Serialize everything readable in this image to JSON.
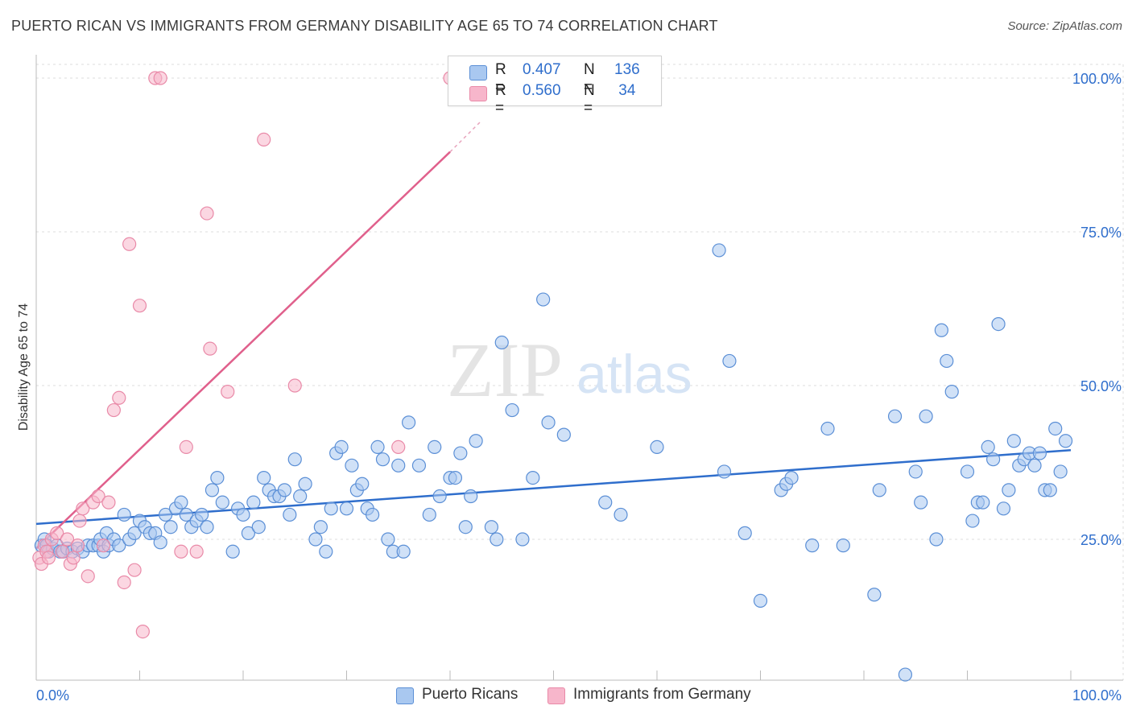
{
  "title": "PUERTO RICAN VS IMMIGRANTS FROM GERMANY DISABILITY AGE 65 TO 74 CORRELATION CHART",
  "source": "Source: ZipAtlas.com",
  "watermark": {
    "zip": "ZIP",
    "atlas": "atlas"
  },
  "legend": {
    "rows": [
      {
        "r_label": "R = ",
        "r_value": "0.407",
        "n_label": "N = ",
        "n_value": "136",
        "color": "#a9c8f0"
      },
      {
        "r_label": "R = ",
        "r_value": "0.560",
        "n_label": "N = ",
        "n_value": " 34",
        "color": "#f7b6cb"
      }
    ]
  },
  "bottom_legend": [
    {
      "label": "Puerto Ricans",
      "color": "#a9c8f0"
    },
    {
      "label": "Immigrants from Germany",
      "color": "#f7b6cb"
    }
  ],
  "colors": {
    "blue_fill": "#a9c8f0",
    "blue_stroke": "#5b8fd6",
    "blue_line": "#2f6ecc",
    "pink_fill": "#f7b6cb",
    "pink_stroke": "#e98aa8",
    "pink_line": "#e0608c",
    "axis_text": "#2f6ecc",
    "grid": "#dddddd"
  },
  "chart_data": {
    "type": "scatter",
    "ylabel": "Disability Age 65 to 74",
    "xlabel": "",
    "xlim": [
      0,
      100
    ],
    "ylim": [
      0,
      100
    ],
    "x_tick_labels": [
      "0.0%",
      "100.0%"
    ],
    "y_ticks": [
      25,
      50,
      75,
      100
    ],
    "y_tick_labels": [
      "25.0%",
      "50.0%",
      "75.0%",
      "100.0%"
    ],
    "grid": true,
    "legend_position": "top-center",
    "series": [
      {
        "name": "Puerto Ricans",
        "regression": {
          "x0": 0,
          "y0": 27.5,
          "x1": 100,
          "y1": 39.5
        },
        "points": [
          [
            0.5,
            24
          ],
          [
            0.8,
            25
          ],
          [
            1,
            24
          ],
          [
            1.2,
            23
          ],
          [
            1.6,
            23.5
          ],
          [
            2,
            24
          ],
          [
            2.3,
            23
          ],
          [
            2.6,
            23
          ],
          [
            3,
            23.5
          ],
          [
            3.5,
            23
          ],
          [
            4,
            23.5
          ],
          [
            4.5,
            23
          ],
          [
            5,
            24
          ],
          [
            5.5,
            24
          ],
          [
            6,
            24
          ],
          [
            6.2,
            25
          ],
          [
            6.5,
            23
          ],
          [
            6.8,
            26
          ],
          [
            7,
            24
          ],
          [
            7.5,
            25
          ],
          [
            8,
            24
          ],
          [
            8.5,
            29
          ],
          [
            9,
            25
          ],
          [
            9.5,
            26
          ],
          [
            10,
            28
          ],
          [
            10.5,
            27
          ],
          [
            11,
            26
          ],
          [
            11.5,
            26
          ],
          [
            12,
            24.5
          ],
          [
            12.5,
            29
          ],
          [
            13,
            27
          ],
          [
            13.5,
            30
          ],
          [
            14,
            31
          ],
          [
            14.5,
            29
          ],
          [
            15,
            27
          ],
          [
            15.5,
            28
          ],
          [
            16,
            29
          ],
          [
            16.5,
            27
          ],
          [
            17,
            33
          ],
          [
            17.5,
            35
          ],
          [
            18,
            31
          ],
          [
            19,
            23
          ],
          [
            19.5,
            30
          ],
          [
            20,
            29
          ],
          [
            20.5,
            26
          ],
          [
            21,
            31
          ],
          [
            21.5,
            27
          ],
          [
            22,
            35
          ],
          [
            22.5,
            33
          ],
          [
            23,
            32
          ],
          [
            23.5,
            32
          ],
          [
            24,
            33
          ],
          [
            24.5,
            29
          ],
          [
            25,
            38
          ],
          [
            25.5,
            32
          ],
          [
            26,
            34
          ],
          [
            27,
            25
          ],
          [
            27.5,
            27
          ],
          [
            28,
            23
          ],
          [
            28.5,
            30
          ],
          [
            29,
            39
          ],
          [
            29.5,
            40
          ],
          [
            30,
            30
          ],
          [
            30.5,
            37
          ],
          [
            31,
            33
          ],
          [
            31.5,
            34
          ],
          [
            32,
            30
          ],
          [
            32.5,
            29
          ],
          [
            33,
            40
          ],
          [
            33.5,
            38
          ],
          [
            34,
            25
          ],
          [
            34.5,
            23
          ],
          [
            35,
            37
          ],
          [
            35.5,
            23
          ],
          [
            36,
            44
          ],
          [
            37,
            37
          ],
          [
            38,
            29
          ],
          [
            38.5,
            40
          ],
          [
            39,
            32
          ],
          [
            40,
            35
          ],
          [
            40.5,
            35
          ],
          [
            41,
            39
          ],
          [
            41.5,
            27
          ],
          [
            42,
            32
          ],
          [
            42.5,
            41
          ],
          [
            44,
            27
          ],
          [
            44.5,
            25
          ],
          [
            45,
            57
          ],
          [
            46,
            46
          ],
          [
            47,
            25
          ],
          [
            48,
            35
          ],
          [
            49,
            64
          ],
          [
            49.5,
            44
          ],
          [
            51,
            42
          ],
          [
            55,
            31
          ],
          [
            56.5,
            29
          ],
          [
            60,
            40
          ],
          [
            66,
            72
          ],
          [
            66.5,
            36
          ],
          [
            67,
            54
          ],
          [
            68.5,
            26
          ],
          [
            70,
            15
          ],
          [
            72,
            33
          ],
          [
            72.5,
            34
          ],
          [
            73,
            35
          ],
          [
            75,
            24
          ],
          [
            76.5,
            43
          ],
          [
            78,
            24
          ],
          [
            81,
            16
          ],
          [
            81.5,
            33
          ],
          [
            83,
            45
          ],
          [
            84,
            3
          ],
          [
            85,
            36
          ],
          [
            85.5,
            31
          ],
          [
            86,
            45
          ],
          [
            87,
            25
          ],
          [
            87.5,
            59
          ],
          [
            88,
            54
          ],
          [
            88.5,
            49
          ],
          [
            90,
            36
          ],
          [
            90.5,
            28
          ],
          [
            91,
            31
          ],
          [
            91.5,
            31
          ],
          [
            92,
            40
          ],
          [
            92.5,
            38
          ],
          [
            93,
            60
          ],
          [
            93.5,
            30
          ],
          [
            94,
            33
          ],
          [
            94.5,
            41
          ],
          [
            95,
            37
          ],
          [
            95.5,
            38
          ],
          [
            96,
            39
          ],
          [
            96.5,
            37
          ],
          [
            97,
            39
          ],
          [
            97.5,
            33
          ],
          [
            98,
            33
          ],
          [
            98.5,
            43
          ],
          [
            99,
            36
          ],
          [
            99.5,
            41
          ]
        ]
      },
      {
        "name": "Immigrants from Germany",
        "regression": {
          "x0": 0,
          "y0": 23.5,
          "x1": 40,
          "y1": 88,
          "dash_to": {
            "x": 43,
            "y": 93
          }
        },
        "points": [
          [
            0.3,
            22
          ],
          [
            0.5,
            21
          ],
          [
            0.8,
            24
          ],
          [
            1,
            23
          ],
          [
            1.2,
            22
          ],
          [
            1.5,
            25
          ],
          [
            2,
            26
          ],
          [
            2.5,
            23
          ],
          [
            3,
            25
          ],
          [
            3.3,
            21
          ],
          [
            3.6,
            22
          ],
          [
            4,
            24
          ],
          [
            4.2,
            28
          ],
          [
            4.5,
            30
          ],
          [
            5,
            19
          ],
          [
            5.5,
            31
          ],
          [
            6,
            32
          ],
          [
            6.5,
            24
          ],
          [
            7,
            31
          ],
          [
            7.5,
            46
          ],
          [
            8,
            48
          ],
          [
            8.5,
            18
          ],
          [
            9,
            73
          ],
          [
            9.5,
            20
          ],
          [
            10,
            63
          ],
          [
            10.3,
            10
          ],
          [
            11.5,
            100
          ],
          [
            12,
            100
          ],
          [
            14,
            23
          ],
          [
            14.5,
            40
          ],
          [
            15.5,
            23
          ],
          [
            16.5,
            78
          ],
          [
            16.8,
            56
          ],
          [
            18.5,
            49
          ],
          [
            22,
            90
          ],
          [
            25,
            50
          ],
          [
            35,
            40
          ],
          [
            40,
            100
          ]
        ]
      }
    ]
  }
}
